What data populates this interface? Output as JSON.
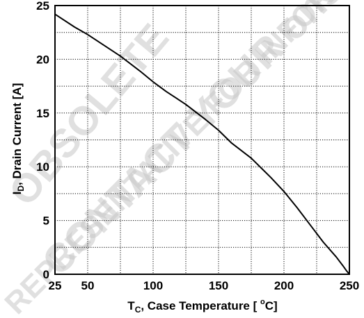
{
  "watermark": {
    "lines": [
      "OBSOLETE",
      "CONTACT YOUR onsemi",
      "REPRESENTATIVE FOR INFORMATION"
    ]
  },
  "chart_data": {
    "type": "line",
    "title": "",
    "xlabel": "T",
    "xlabel_sub": "C",
    "xlabel_rest": ", Case Temperature [ ",
    "xlabel_sup": "o",
    "xlabel_unit": "C]",
    "ylabel": "I",
    "ylabel_sub": "D",
    "ylabel_rest": ", Drain Current [A]",
    "xlim": [
      25,
      250
    ],
    "ylim": [
      0,
      25
    ],
    "x_ticks": [
      25,
      50,
      75,
      100,
      125,
      150,
      175,
      200,
      225,
      250
    ],
    "x_tick_labels": [
      "25",
      "50",
      "",
      "100",
      "",
      "150",
      "",
      "200",
      "",
      "250"
    ],
    "y_ticks": [
      0,
      2.5,
      5,
      7.5,
      10,
      12.5,
      15,
      17.5,
      20,
      22.5,
      25
    ],
    "y_tick_labels": [
      "0",
      "",
      "5",
      "",
      "10",
      "",
      "15",
      "",
      "20",
      "",
      "25"
    ],
    "grid": true,
    "series": [
      {
        "x": [
          25,
          40,
          50,
          60,
          75,
          90,
          100,
          110,
          125,
          140,
          150,
          160,
          175,
          190,
          200,
          210,
          220,
          230,
          240,
          245,
          248,
          250
        ],
        "y": [
          24.2,
          23.0,
          22.3,
          21.5,
          20.3,
          18.9,
          17.9,
          17.0,
          15.8,
          14.4,
          13.4,
          12.2,
          10.8,
          9.0,
          7.7,
          6.2,
          4.6,
          3.0,
          1.6,
          0.8,
          0.3,
          0.0
        ]
      }
    ]
  }
}
